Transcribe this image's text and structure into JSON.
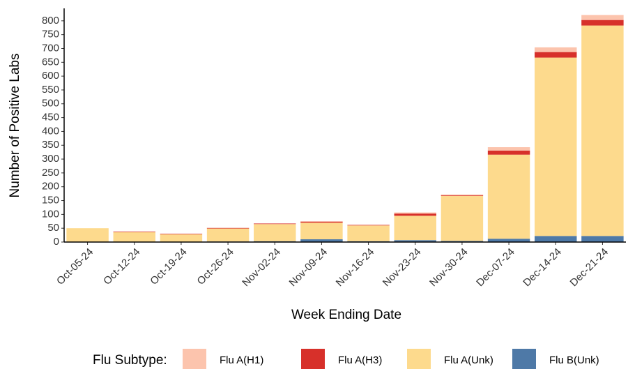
{
  "chart_data": {
    "type": "stacked_bar",
    "x_label": "Week Ending Date",
    "y_label": "Number of Positive Labs",
    "legend_title": "Flu Subtype:",
    "categories": [
      "Oct-05-24",
      "Oct-12-24",
      "Oct-19-24",
      "Oct-26-24",
      "Nov-02-24",
      "Nov-09-24",
      "Nov-16-24",
      "Nov-23-24",
      "Nov-30-24",
      "Dec-07-24",
      "Dec-14-24",
      "Dec-21-24"
    ],
    "series": [
      {
        "name": "Flu B(Unk)",
        "color": "#4e79a7",
        "values": [
          0,
          0,
          0,
          2,
          3,
          10,
          3,
          7,
          4,
          12,
          22,
          22
        ]
      },
      {
        "name": "Flu A(Unk)",
        "color": "#fdda8d",
        "values": [
          50,
          36,
          28,
          47,
          62,
          60,
          57,
          88,
          163,
          304,
          645,
          761
        ]
      },
      {
        "name": "Flu A(H3)",
        "color": "#d7302a",
        "values": [
          0,
          2,
          2,
          2,
          2,
          4,
          2,
          8,
          2,
          15,
          20,
          20
        ]
      },
      {
        "name": "Flu A(H1)",
        "color": "#fcc4ad",
        "values": [
          0,
          0,
          0,
          0,
          0,
          1,
          0,
          4,
          3,
          12,
          17,
          18
        ]
      }
    ],
    "legend_order": [
      3,
      2,
      1,
      0
    ],
    "ylim": [
      0,
      845
    ],
    "yticks": [
      0,
      50,
      100,
      150,
      200,
      250,
      300,
      350,
      400,
      450,
      500,
      550,
      600,
      650,
      700,
      750,
      800
    ]
  }
}
